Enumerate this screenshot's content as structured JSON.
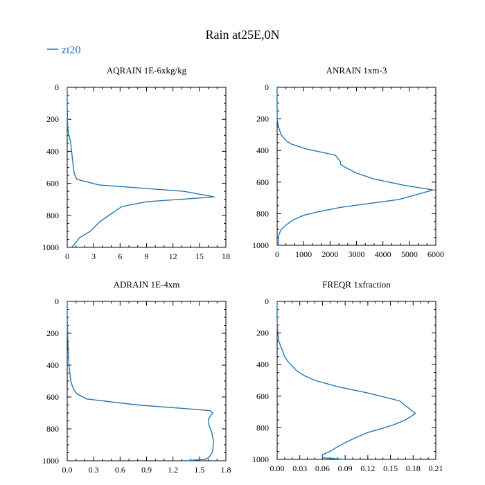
{
  "title": "Rain at25E,0N",
  "legend": {
    "label": "zt20",
    "color": "#1f77b4"
  },
  "chart_data": [
    {
      "type": "line",
      "title": "AQRAIN  1E-6xkg/kg",
      "xlabel": "",
      "ylabel": "",
      "xlim": [
        0,
        18
      ],
      "ylim": [
        1000,
        0
      ],
      "x_ticks": [
        0,
        3,
        6,
        9,
        12,
        15,
        18
      ],
      "x_tick_labels": [
        "0",
        "3",
        "6",
        "9",
        "12",
        "15",
        "18"
      ],
      "y_ticks": [
        0,
        200,
        400,
        600,
        800,
        1000
      ],
      "y_tick_labels": [
        "0",
        "200",
        "400",
        "600",
        "800",
        "1000"
      ],
      "series": [
        {
          "name": "zt20",
          "x": [
            0,
            0,
            0.05,
            0.2,
            0.4,
            0.5,
            0.6,
            0.7,
            0.8,
            1.1,
            3.6,
            13.2,
            16.7,
            9.0,
            6.2,
            5.0,
            3.7,
            2.6,
            1.4,
            0.9,
            0.5
          ],
          "y": [
            0,
            100,
            250,
            300,
            350,
            400,
            450,
            500,
            540,
            575,
            610,
            650,
            685,
            715,
            745,
            790,
            840,
            900,
            940,
            975,
            1000
          ]
        }
      ]
    },
    {
      "type": "line",
      "title": "ANRAIN  1xm-3",
      "xlabel": "",
      "ylabel": "",
      "xlim": [
        0,
        6000
      ],
      "ylim": [
        1000,
        0
      ],
      "x_ticks": [
        0,
        1000,
        2000,
        3000,
        4000,
        5000,
        6000
      ],
      "x_tick_labels": [
        "0",
        "1000",
        "2000",
        "3000",
        "4000",
        "5000",
        "6000"
      ],
      "y_ticks": [
        0,
        200,
        400,
        600,
        800,
        1000
      ],
      "y_tick_labels": [
        "0",
        "200",
        "400",
        "600",
        "800",
        "1000"
      ],
      "series": [
        {
          "name": "zt20",
          "x": [
            0,
            0,
            50,
            150,
            350,
            550,
            1100,
            2200,
            2400,
            2400,
            2950,
            3650,
            4800,
            5900,
            4600,
            2400,
            1500,
            1000,
            600,
            350,
            150,
            50,
            50
          ],
          "y": [
            0,
            200,
            250,
            300,
            340,
            360,
            390,
            430,
            470,
            490,
            540,
            580,
            620,
            650,
            710,
            760,
            790,
            810,
            840,
            870,
            900,
            940,
            1000
          ]
        }
      ]
    },
    {
      "type": "line",
      "title": "ADRAIN  1E-4xm",
      "xlabel": "",
      "ylabel": "",
      "xlim": [
        0,
        1.8
      ],
      "ylim": [
        1000,
        0
      ],
      "x_ticks": [
        0,
        0.3,
        0.6,
        0.9,
        1.2,
        1.5,
        1.8
      ],
      "x_tick_labels": [
        "0.0",
        "0.3",
        "0.6",
        "0.9",
        "1.2",
        "1.5",
        "1.8"
      ],
      "y_ticks": [
        0,
        200,
        400,
        600,
        800,
        1000
      ],
      "y_tick_labels": [
        "0",
        "200",
        "400",
        "600",
        "800",
        "1000"
      ],
      "series": [
        {
          "name": "zt20",
          "x": [
            0,
            0,
            0.01,
            0.02,
            0.04,
            0.07,
            0.11,
            0.22,
            0.8,
            1.62,
            1.65,
            1.6,
            1.61,
            1.64,
            1.66,
            1.65,
            1.62,
            1.58,
            1.35
          ],
          "y": [
            0,
            100,
            300,
            400,
            500,
            550,
            580,
            612,
            650,
            685,
            700,
            740,
            780,
            820,
            880,
            940,
            970,
            990,
            1000
          ]
        }
      ]
    },
    {
      "type": "line",
      "title": "FREQR  1xfraction",
      "xlabel": "",
      "ylabel": "",
      "xlim": [
        0,
        0.21
      ],
      "ylim": [
        1000,
        0
      ],
      "x_ticks": [
        0,
        0.03,
        0.06,
        0.09,
        0.12,
        0.15,
        0.18,
        0.21
      ],
      "x_tick_labels": [
        "0.00",
        "0.03",
        "0.06",
        "0.09",
        "0.12",
        "0.15",
        "0.18",
        "0.21"
      ],
      "y_ticks": [
        0,
        200,
        400,
        600,
        800,
        1000
      ],
      "y_tick_labels": [
        "0",
        "200",
        "400",
        "600",
        "800",
        "1000"
      ],
      "series": [
        {
          "name": "zt20",
          "x": [
            0,
            0,
            0.002,
            0.006,
            0.01,
            0.014,
            0.018,
            0.026,
            0.036,
            0.05,
            0.08,
            0.12,
            0.162,
            0.183,
            0.17,
            0.155,
            0.135,
            0.12,
            0.105,
            0.092,
            0.08,
            0.07,
            0.06,
            0.06,
            0.09
          ],
          "y": [
            0,
            150,
            250,
            300,
            350,
            380,
            400,
            440,
            470,
            500,
            540,
            580,
            630,
            710,
            750,
            780,
            810,
            830,
            860,
            890,
            920,
            950,
            970,
            990,
            1000
          ]
        }
      ]
    }
  ]
}
